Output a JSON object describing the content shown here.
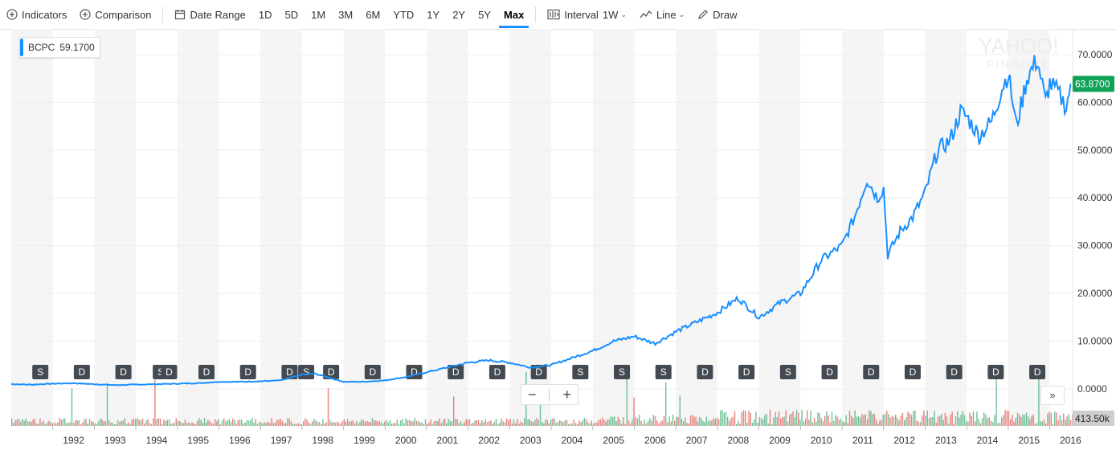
{
  "toolbar": {
    "indicators": "Indicators",
    "comparison": "Comparison",
    "date_range": "Date Range",
    "ranges": [
      "1D",
      "5D",
      "1M",
      "3M",
      "6M",
      "YTD",
      "1Y",
      "2Y",
      "5Y",
      "Max"
    ],
    "active_range": "Max",
    "interval_label": "Interval",
    "interval_value": "1W",
    "chart_type": "Line",
    "draw": "Draw"
  },
  "legend": {
    "symbol": "BCPC",
    "value": "59.1700"
  },
  "watermark": {
    "line1": "YAHOO!",
    "line2": "FINANCE"
  },
  "zoom": {
    "minus": "−",
    "plus": "+"
  },
  "more_label": "»",
  "colors": {
    "line": "#188fff",
    "current_badge": "#11a257",
    "vol_up": "#4caf7d",
    "vol_down": "#e0645c",
    "event_badge": "#444a52"
  },
  "chart_data": {
    "type": "line",
    "symbol": "BCPC",
    "x": [
      1991.0,
      1991.5,
      1992.0,
      1992.5,
      1993.0,
      1993.5,
      1994.0,
      1994.5,
      1995.0,
      1995.5,
      1996.0,
      1996.5,
      1997.0,
      1997.5,
      1998.0,
      1998.3,
      1998.6,
      1999.0,
      1999.5,
      2000.0,
      2000.5,
      2001.0,
      2001.5,
      2002.0,
      2002.5,
      2003.0,
      2003.5,
      2004.0,
      2004.5,
      2005.0,
      2005.5,
      2006.0,
      2006.5,
      2007.0,
      2007.5,
      2008.0,
      2008.5,
      2009.0,
      2009.5,
      2010.0,
      2010.5,
      2011.0,
      2011.3,
      2011.6,
      2011.85,
      2012.0,
      2012.1,
      2012.4,
      2012.7,
      2013.0,
      2013.3,
      2013.6,
      2013.85,
      2014.0,
      2014.3,
      2014.6,
      2014.85,
      2015.0,
      2015.2,
      2015.45,
      2015.7,
      2015.9,
      2016.0,
      2016.2,
      2016.4,
      2016.5
    ],
    "y": [
      1.0,
      0.9,
      1.1,
      1.2,
      1.0,
      0.8,
      0.9,
      1.0,
      1.1,
      1.2,
      1.5,
      1.5,
      1.6,
      1.8,
      3.0,
      3.2,
      2.5,
      1.5,
      1.5,
      1.8,
      2.5,
      3.5,
      4.5,
      5.5,
      6.0,
      5.5,
      4.5,
      5.0,
      6.5,
      8.0,
      10.0,
      11.0,
      9.5,
      12.0,
      14.0,
      16.0,
      19.0,
      15.0,
      18.0,
      20.0,
      27.0,
      30.0,
      36.0,
      44.0,
      40.0,
      42.0,
      28.0,
      33.0,
      36.0,
      41.0,
      50.0,
      52.0,
      58.0,
      57.0,
      53.0,
      56.0,
      63.0,
      66.0,
      55.0,
      65.0,
      69.0,
      60.0,
      64.0,
      62.0,
      59.0,
      63.87
    ],
    "ylim": [
      0,
      72
    ],
    "xlim": [
      1991.0,
      2016.55
    ],
    "yticks": [
      "0.0000",
      "10.0000",
      "20.0000",
      "30.0000",
      "40.0000",
      "50.0000",
      "60.0000",
      "70.0000"
    ],
    "ytick_values": [
      0,
      10,
      20,
      30,
      40,
      50,
      60,
      70
    ],
    "xticks": [
      "1992",
      "1993",
      "1994",
      "1995",
      "1996",
      "1997",
      "1998",
      "1999",
      "2000",
      "2001",
      "2002",
      "2003",
      "2004",
      "2005",
      "2006",
      "2007",
      "2008",
      "2009",
      "2010",
      "2011",
      "2012",
      "2013",
      "2014",
      "2015",
      "2016"
    ],
    "current_value": "63.8700",
    "current_value_num": 63.87,
    "volume_label": "413.50k",
    "events": [
      {
        "t": 1991.7,
        "label": "S"
      },
      {
        "t": 1992.7,
        "label": "D"
      },
      {
        "t": 1993.7,
        "label": "D"
      },
      {
        "t": 1994.6,
        "label": "S"
      },
      {
        "t": 1994.8,
        "label": "D"
      },
      {
        "t": 1995.7,
        "label": "D"
      },
      {
        "t": 1996.7,
        "label": "D"
      },
      {
        "t": 1997.7,
        "label": "D"
      },
      {
        "t": 1998.1,
        "label": "S"
      },
      {
        "t": 1998.7,
        "label": "D"
      },
      {
        "t": 1999.7,
        "label": "D"
      },
      {
        "t": 2000.7,
        "label": "D"
      },
      {
        "t": 2001.7,
        "label": "D"
      },
      {
        "t": 2002.7,
        "label": "D"
      },
      {
        "t": 2003.7,
        "label": "D"
      },
      {
        "t": 2004.7,
        "label": "S"
      },
      {
        "t": 2005.7,
        "label": "S"
      },
      {
        "t": 2006.7,
        "label": "S"
      },
      {
        "t": 2007.7,
        "label": "D"
      },
      {
        "t": 2008.7,
        "label": "D"
      },
      {
        "t": 2009.7,
        "label": "S"
      },
      {
        "t": 2010.7,
        "label": "D"
      },
      {
        "t": 2011.7,
        "label": "D"
      },
      {
        "t": 2012.7,
        "label": "D"
      },
      {
        "t": 2013.7,
        "label": "D"
      },
      {
        "t": 2014.7,
        "label": "D"
      },
      {
        "t": 2015.7,
        "label": "D"
      }
    ],
    "grid": true
  }
}
